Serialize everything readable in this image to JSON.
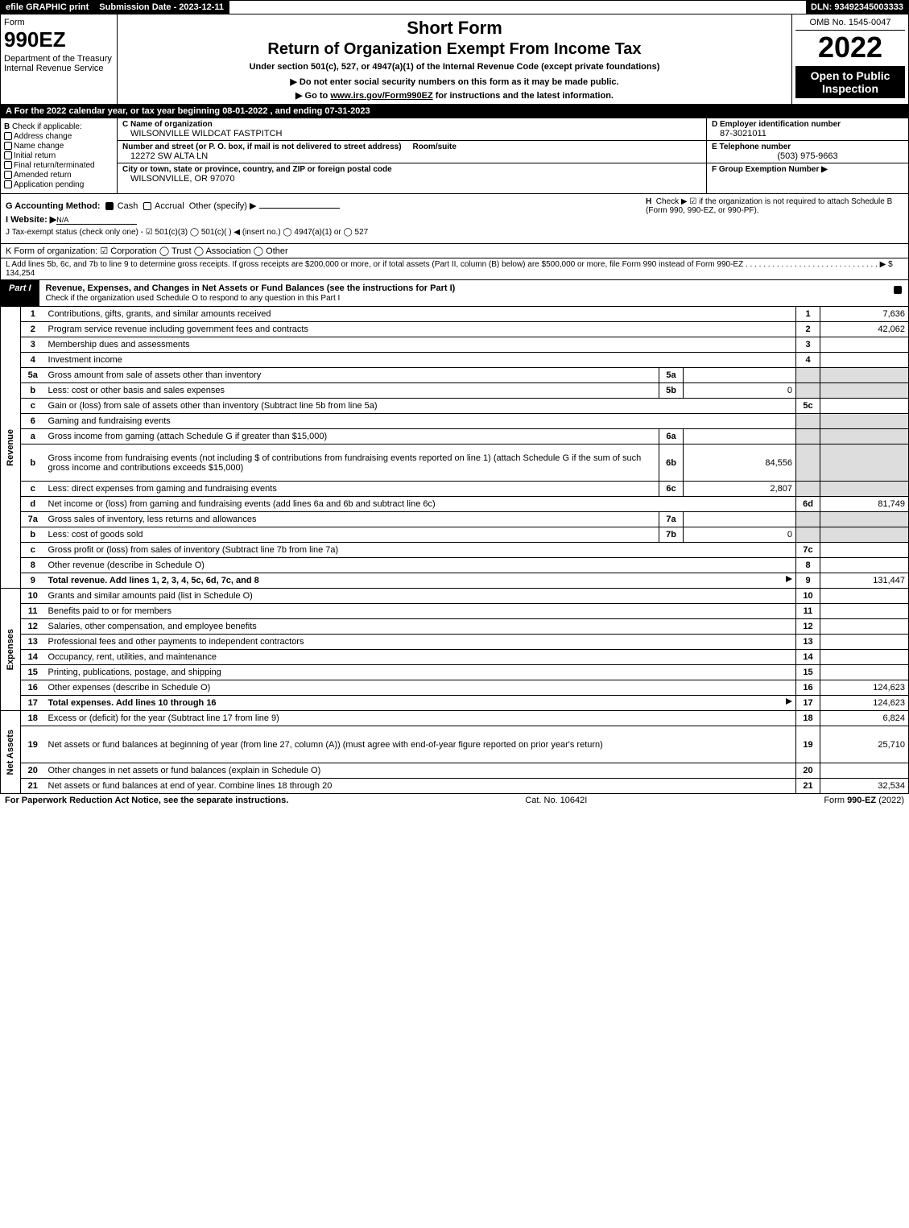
{
  "topbar": {
    "efile": "efile GRAPHIC print",
    "subdate_label": "Submission Date - 2023-12-11",
    "dln": "DLN: 93492345003333"
  },
  "header": {
    "form_label": "Form",
    "form_no": "990EZ",
    "dept": "Department of the Treasury\nInternal Revenue Service",
    "short": "Short Form",
    "return_title": "Return of Organization Exempt From Income Tax",
    "under": "Under section 501(c), 527, or 4947(a)(1) of the Internal Revenue Code (except private foundations)",
    "note_ssn": "▶ Do not enter social security numbers on this form as it may be made public.",
    "note_link_pre": "▶ Go to ",
    "note_link": "www.irs.gov/Form990EZ",
    "note_link_post": " for instructions and the latest information.",
    "omb": "OMB No. 1545-0047",
    "year": "2022",
    "open": "Open to Public Inspection"
  },
  "lineA": "A  For the 2022 calendar year, or tax year beginning 08-01-2022 , and ending 07-31-2023",
  "boxB": {
    "label": "B",
    "check_if": "Check if applicable:",
    "items": [
      "Address change",
      "Name change",
      "Initial return",
      "Final return/terminated",
      "Amended return",
      "Application pending"
    ]
  },
  "boxC": {
    "lbl": "C Name of organization",
    "name": "WILSONVILLE WILDCAT FASTPITCH",
    "street_lbl": "Number and street (or P. O. box, if mail is not delivered to street address)",
    "street": "12272 SW ALTA LN",
    "room_lbl": "Room/suite",
    "city_lbl": "City or town, state or province, country, and ZIP or foreign postal code",
    "city": "WILSONVILLE, OR  97070"
  },
  "boxD": {
    "lbl": "D Employer identification number",
    "val": "87-3021011"
  },
  "boxE": {
    "lbl": "E Telephone number",
    "val": "(503) 975-9663"
  },
  "boxF": {
    "lbl": "F Group Exemption Number ▶"
  },
  "lineG": {
    "label": "G Accounting Method:",
    "cash": "Cash",
    "accrual": "Accrual",
    "other": "Other (specify) ▶"
  },
  "lineH_pre": "H",
  "lineH": "Check ▶ ☑ if the organization is not required to attach Schedule B (Form 990, 990-EZ, or 990-PF).",
  "lineI": {
    "label": "I Website: ▶",
    "val": "N/A"
  },
  "lineJ": "J Tax-exempt status (check only one) - ☑ 501(c)(3)  ◯ 501(c)(  ) ◀ (insert no.)  ◯ 4947(a)(1) or  ◯ 527",
  "lineK": "K Form of organization:  ☑ Corporation  ◯ Trust  ◯ Association  ◯ Other",
  "lineL": "L Add lines 5b, 6c, and 7b to line 9 to determine gross receipts. If gross receipts are $200,000 or more, or if total assets (Part II, column (B) below) are $500,000 or more, file Form 990 instead of Form 990-EZ . . . . . . . . . . . . . . . . . . . . . . . . . . . . . . ▶ $ 134,254",
  "part1": {
    "tag": "Part I",
    "title": "Revenue, Expenses, and Changes in Net Assets or Fund Balances (see the instructions for Part I)",
    "sub": "Check if the organization used Schedule O to respond to any question in this Part I"
  },
  "sections": {
    "revenue": "Revenue",
    "expenses": "Expenses",
    "netassets": "Net Assets"
  },
  "rows": [
    {
      "no": "1",
      "desc": "Contributions, gifts, grants, and similar amounts received",
      "rt": "1",
      "val": "7,636"
    },
    {
      "no": "2",
      "desc": "Program service revenue including government fees and contracts",
      "rt": "2",
      "val": "42,062"
    },
    {
      "no": "3",
      "desc": "Membership dues and assessments",
      "rt": "3",
      "val": ""
    },
    {
      "no": "4",
      "desc": "Investment income",
      "rt": "4",
      "val": ""
    },
    {
      "no": "5a",
      "desc": "Gross amount from sale of assets other than inventory",
      "mid": "5a",
      "midval": "",
      "rt": "",
      "val": "",
      "shadeRight": true
    },
    {
      "no": "b",
      "desc": "Less: cost or other basis and sales expenses",
      "mid": "5b",
      "midval": "0",
      "rt": "",
      "val": "",
      "shadeRight": true
    },
    {
      "no": "c",
      "desc": "Gain or (loss) from sale of assets other than inventory (Subtract line 5b from line 5a)",
      "rt": "5c",
      "val": ""
    },
    {
      "no": "6",
      "desc": "Gaming and fundraising events",
      "rt": "",
      "val": "",
      "shadeRight": true,
      "shadeRtNo": true
    },
    {
      "no": "a",
      "desc": "Gross income from gaming (attach Schedule G if greater than $15,000)",
      "mid": "6a",
      "midval": "",
      "rt": "",
      "val": "",
      "shadeRight": true
    },
    {
      "no": "b",
      "desc": "Gross income from fundraising events (not including $                    of contributions from fundraising events reported on line 1) (attach Schedule G if the sum of such gross income and contributions exceeds $15,000)",
      "mid": "6b",
      "midval": "84,556",
      "rt": "",
      "val": "",
      "shadeRight": true,
      "tall": true
    },
    {
      "no": "c",
      "desc": "Less: direct expenses from gaming and fundraising events",
      "mid": "6c",
      "midval": "2,807",
      "rt": "",
      "val": "",
      "shadeRight": true
    },
    {
      "no": "d",
      "desc": "Net income or (loss) from gaming and fundraising events (add lines 6a and 6b and subtract line 6c)",
      "rt": "6d",
      "val": "81,749"
    },
    {
      "no": "7a",
      "desc": "Gross sales of inventory, less returns and allowances",
      "mid": "7a",
      "midval": "",
      "rt": "",
      "val": "",
      "shadeRight": true
    },
    {
      "no": "b",
      "desc": "Less: cost of goods sold",
      "mid": "7b",
      "midval": "0",
      "rt": "",
      "val": "",
      "shadeRight": true
    },
    {
      "no": "c",
      "desc": "Gross profit or (loss) from sales of inventory (Subtract line 7b from line 7a)",
      "rt": "7c",
      "val": ""
    },
    {
      "no": "8",
      "desc": "Other revenue (describe in Schedule O)",
      "rt": "8",
      "val": ""
    },
    {
      "no": "9",
      "desc": "Total revenue. Add lines 1, 2, 3, 4, 5c, 6d, 7c, and 8",
      "rt": "9",
      "val": "131,447",
      "bold": true,
      "arrow": true
    }
  ],
  "exp_rows": [
    {
      "no": "10",
      "desc": "Grants and similar amounts paid (list in Schedule O)",
      "rt": "10",
      "val": ""
    },
    {
      "no": "11",
      "desc": "Benefits paid to or for members",
      "rt": "11",
      "val": ""
    },
    {
      "no": "12",
      "desc": "Salaries, other compensation, and employee benefits",
      "rt": "12",
      "val": ""
    },
    {
      "no": "13",
      "desc": "Professional fees and other payments to independent contractors",
      "rt": "13",
      "val": ""
    },
    {
      "no": "14",
      "desc": "Occupancy, rent, utilities, and maintenance",
      "rt": "14",
      "val": ""
    },
    {
      "no": "15",
      "desc": "Printing, publications, postage, and shipping",
      "rt": "15",
      "val": ""
    },
    {
      "no": "16",
      "desc": "Other expenses (describe in Schedule O)",
      "rt": "16",
      "val": "124,623"
    },
    {
      "no": "17",
      "desc": "Total expenses. Add lines 10 through 16",
      "rt": "17",
      "val": "124,623",
      "bold": true,
      "arrow": true
    }
  ],
  "na_rows": [
    {
      "no": "18",
      "desc": "Excess or (deficit) for the year (Subtract line 17 from line 9)",
      "rt": "18",
      "val": "6,824"
    },
    {
      "no": "19",
      "desc": "Net assets or fund balances at beginning of year (from line 27, column (A)) (must agree with end-of-year figure reported on prior year's return)",
      "rt": "19",
      "val": "25,710",
      "tall": true
    },
    {
      "no": "20",
      "desc": "Other changes in net assets or fund balances (explain in Schedule O)",
      "rt": "20",
      "val": ""
    },
    {
      "no": "21",
      "desc": "Net assets or fund balances at end of year. Combine lines 18 through 20",
      "rt": "21",
      "val": "32,534"
    }
  ],
  "footer": {
    "left": "For Paperwork Reduction Act Notice, see the separate instructions.",
    "mid": "Cat. No. 10642I",
    "right_pre": "Form ",
    "right_bold": "990-EZ",
    "right_post": " (2022)"
  },
  "colors": {
    "black": "#000000",
    "white": "#ffffff",
    "shade": "#dddddd"
  }
}
